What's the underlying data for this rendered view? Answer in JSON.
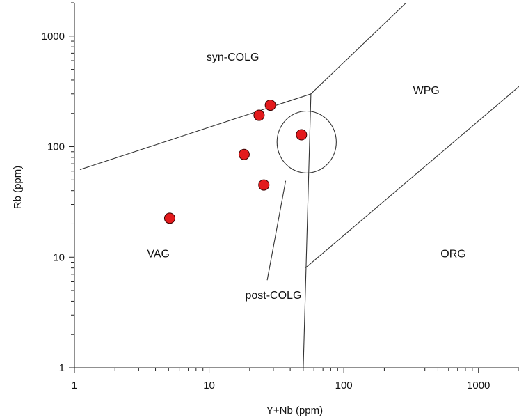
{
  "chart_data": {
    "type": "scatter",
    "title": "",
    "xlabel": "Y+Nb (ppm)",
    "ylabel": "Rb (ppm)",
    "xscale": "log",
    "yscale": "log",
    "xlim": [
      1,
      2000
    ],
    "ylim": [
      1,
      2000
    ],
    "x_ticks": [
      {
        "value": 1,
        "label": "1"
      },
      {
        "value": 10,
        "label": "10"
      },
      {
        "value": 100,
        "label": "100"
      },
      {
        "value": 1000,
        "label": "1000"
      }
    ],
    "y_ticks": [
      {
        "value": 1,
        "label": "1"
      },
      {
        "value": 10,
        "label": "10"
      },
      {
        "value": 100,
        "label": "100"
      },
      {
        "value": 1000,
        "label": "1000"
      }
    ],
    "grid": false,
    "marker_color": "#e31a1c",
    "points": [
      {
        "x": 5.1,
        "y": 22.5
      },
      {
        "x": 18.2,
        "y": 85
      },
      {
        "x": 23.5,
        "y": 192
      },
      {
        "x": 28.5,
        "y": 237
      },
      {
        "x": 25.5,
        "y": 45
      },
      {
        "x": 48.5,
        "y": 128
      }
    ],
    "field_lines": [
      {
        "name": "syn-VAG",
        "points": [
          [
            1.1,
            62
          ],
          [
            57,
            300
          ]
        ]
      },
      {
        "name": "syn-WPG",
        "points": [
          [
            57,
            300
          ],
          [
            290,
            2000
          ]
        ]
      },
      {
        "name": "VAG-ORG",
        "points": [
          [
            57,
            300
          ],
          [
            50,
            1
          ]
        ]
      },
      {
        "name": "WPG-ORG",
        "points": [
          [
            52,
            8
          ],
          [
            2000,
            350
          ]
        ]
      }
    ],
    "post_colg_ellipse": {
      "center": [
        53,
        110
      ],
      "log_radius_x": 0.22,
      "log_radius_y": 0.28
    },
    "post_colg_leader": [
      [
        37,
        49
      ],
      [
        27,
        6.2
      ]
    ],
    "field_labels": [
      {
        "text": "syn-COLG",
        "x": 15,
        "y": 600
      },
      {
        "text": "WPG",
        "x": 410,
        "y": 300
      },
      {
        "text": "VAG",
        "x": 4.2,
        "y": 10
      },
      {
        "text": "ORG",
        "x": 650,
        "y": 10
      },
      {
        "text": "post-COLG",
        "x": 30,
        "y": 4.2
      }
    ]
  }
}
